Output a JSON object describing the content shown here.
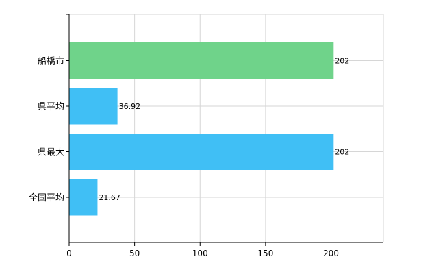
{
  "chart_data": {
    "type": "bar",
    "orientation": "horizontal",
    "categories": [
      "船橋市",
      "県平均",
      "県最大",
      "全国平均"
    ],
    "values": [
      202,
      36.92,
      202,
      21.67
    ],
    "data_labels": [
      "202",
      "36.92",
      "202",
      "21.67"
    ],
    "bar_colors": [
      "#6fd38a",
      "#40bff5",
      "#40bff5",
      "#40bff5"
    ],
    "xlim": [
      0,
      240
    ],
    "x_ticks": [
      0,
      50,
      100,
      150,
      200
    ],
    "x_tick_labels": [
      "0",
      "50",
      "100",
      "150",
      "200"
    ],
    "grid": true,
    "legend": "none"
  }
}
